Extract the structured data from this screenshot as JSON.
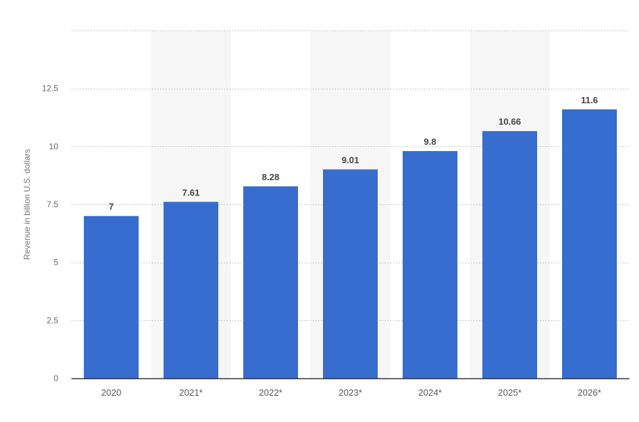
{
  "chart_data": {
    "type": "bar",
    "categories": [
      "2020",
      "2021*",
      "2022*",
      "2023*",
      "2024*",
      "2025*",
      "2026*"
    ],
    "series": [
      {
        "values": [
          7,
          7.61,
          8.28,
          9.01,
          9.8,
          10.66,
          11.6
        ],
        "labels": [
          "7",
          "7.61",
          "8.28",
          "9.01",
          "9.8",
          "10.66",
          "11.6"
        ]
      }
    ],
    "ylabel": "Revenue in billion U.S. dollars",
    "ylim": [
      0,
      15
    ],
    "yticks": [
      0,
      2.5,
      5,
      7.5,
      10,
      12.5
    ],
    "ytick_labels": [
      "0",
      "2.5",
      "5",
      "7.5",
      "10",
      "12.5"
    ],
    "grid": true,
    "alternating_bands": true,
    "data_labels": true,
    "colors": {
      "bar": "#366DCE",
      "band": "#f6f6f6",
      "grid": "#c8c8c8",
      "axis": "#333333"
    }
  }
}
